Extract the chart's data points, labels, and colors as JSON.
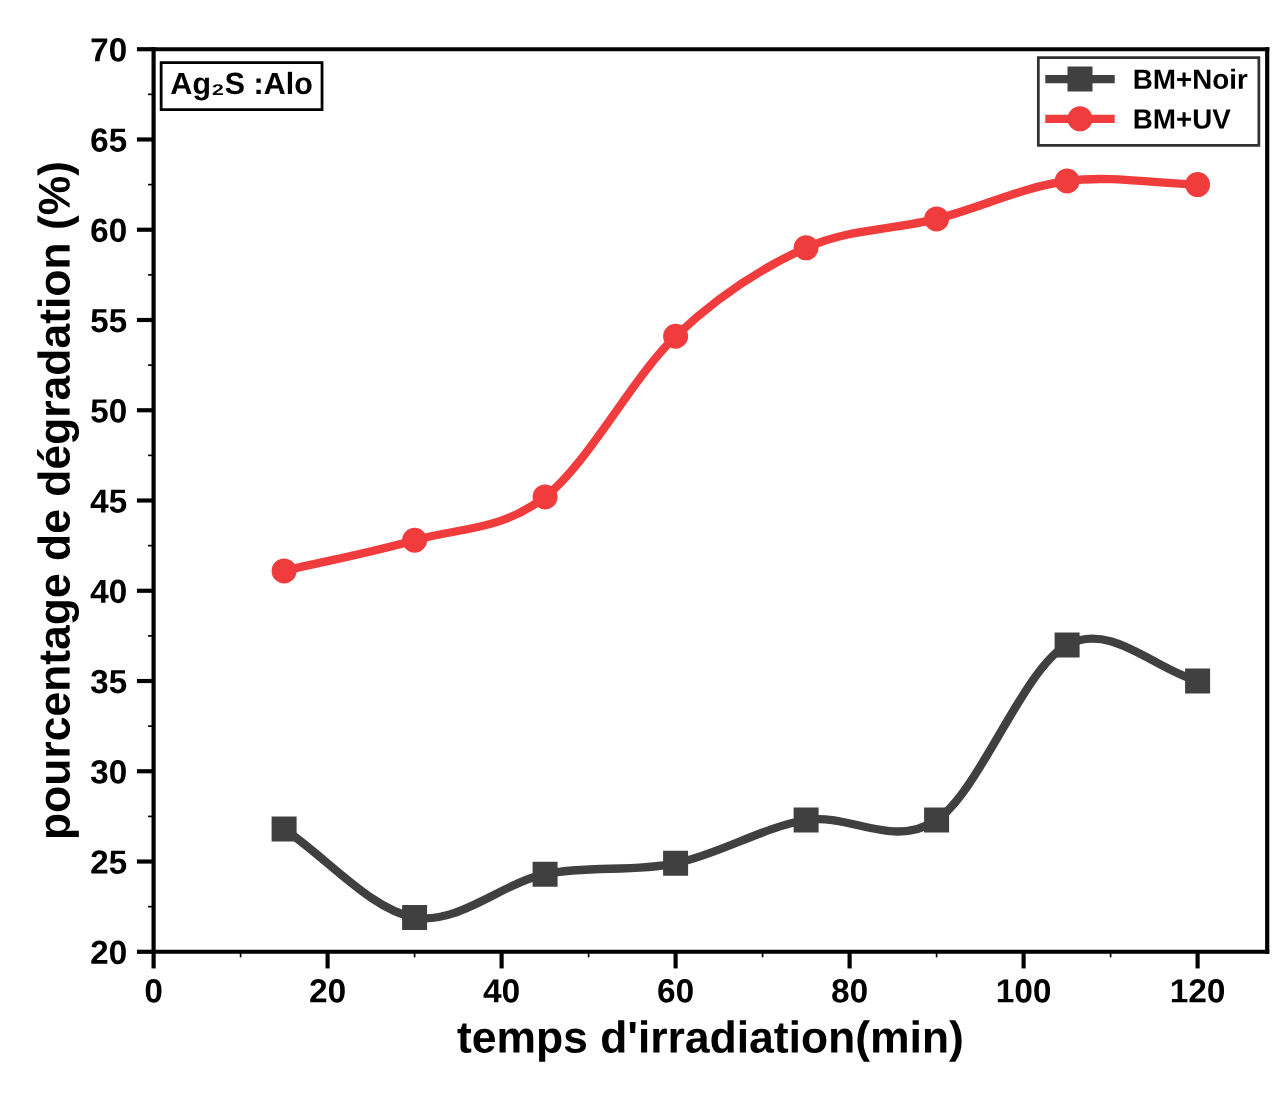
{
  "chart_data": {
    "type": "line",
    "xlabel": "temps d'irradiation(min)",
    "ylabel": "pourcentage de dégradation (%)",
    "annotations": [
      "Ag₂S :Alo"
    ],
    "x": [
      15,
      30,
      45,
      60,
      75,
      90,
      105,
      120
    ],
    "series": [
      {
        "name": "BM+Noir",
        "color": "#404040",
        "marker": "square",
        "values": [
          26.8,
          21.9,
          24.3,
          24.9,
          27.3,
          27.3,
          37.0,
          35.0
        ]
      },
      {
        "name": "BM+UV",
        "color": "#f03c3c",
        "marker": "circle",
        "values": [
          41.1,
          42.8,
          45.2,
          54.1,
          59.0,
          60.6,
          62.7,
          62.5
        ]
      }
    ],
    "xlim": [
      0,
      128
    ],
    "xticks": [
      0,
      20,
      40,
      60,
      80,
      100,
      120
    ],
    "ylim": [
      20,
      70
    ],
    "yticks": [
      20,
      25,
      30,
      35,
      40,
      45,
      50,
      55,
      60,
      65,
      70
    ],
    "grid": false,
    "legend": "top right",
    "line_style": "solid"
  }
}
